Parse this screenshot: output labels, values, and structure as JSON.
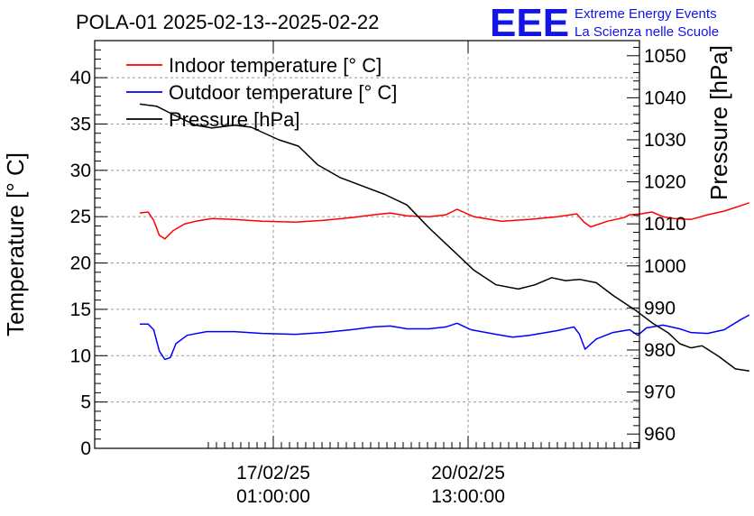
{
  "chart_data": {
    "type": "line",
    "title": "POLA-01 2025-02-13--2025-02-22",
    "logo": {
      "mark": "EEE",
      "line1": "Extreme Energy Events",
      "line2": "La Scienza nelle Scuole"
    },
    "ylabel_left": "Temperature [° C]",
    "ylabel_right": "Pressure [hPa]",
    "y_left_range": [
      0,
      44
    ],
    "y_left_ticks": [
      "0",
      "5",
      "10",
      "15",
      "20",
      "25",
      "30",
      "35",
      "40"
    ],
    "y_right_range": [
      956.6,
      1053.6
    ],
    "y_right_ticks": [
      "960",
      "970",
      "980",
      "990",
      "1000",
      "1010",
      "1020",
      "1030",
      "1040",
      "1050"
    ],
    "x_ticks": [
      {
        "date": "17/02/25",
        "time": "01:00:00"
      },
      {
        "date": "20/02/25",
        "time": "13:00:00"
      }
    ],
    "grid": true,
    "legend_position": "top-left",
    "series": [
      {
        "name": "Indoor temperature [° C]",
        "color": "#ff0000",
        "axis": "left",
        "points": [
          [
            0.0,
            25.4
          ],
          [
            0.15,
            25.5
          ],
          [
            0.25,
            24.6
          ],
          [
            0.35,
            23.0
          ],
          [
            0.45,
            22.6
          ],
          [
            0.6,
            23.5
          ],
          [
            0.8,
            24.2
          ],
          [
            1.0,
            24.5
          ],
          [
            1.3,
            24.8
          ],
          [
            1.7,
            24.7
          ],
          [
            2.2,
            24.5
          ],
          [
            2.8,
            24.4
          ],
          [
            3.3,
            24.6
          ],
          [
            3.8,
            24.9
          ],
          [
            4.2,
            25.2
          ],
          [
            4.5,
            25.4
          ],
          [
            4.8,
            25.1
          ],
          [
            5.2,
            25.0
          ],
          [
            5.5,
            25.2
          ],
          [
            5.7,
            25.8
          ],
          [
            6.0,
            25.0
          ],
          [
            6.5,
            24.5
          ],
          [
            7.0,
            24.7
          ],
          [
            7.5,
            25.0
          ],
          [
            7.85,
            25.3
          ],
          [
            7.98,
            24.4
          ],
          [
            8.1,
            23.9
          ],
          [
            8.4,
            24.5
          ],
          [
            8.7,
            24.9
          ],
          [
            8.8,
            25.2
          ],
          [
            9.0,
            25.3
          ],
          [
            9.2,
            25.5
          ],
          [
            9.4,
            25.0
          ],
          [
            9.6,
            24.8
          ],
          [
            9.9,
            24.7
          ],
          [
            10.2,
            25.2
          ],
          [
            10.5,
            25.6
          ],
          [
            10.8,
            26.2
          ],
          [
            10.95,
            26.5
          ]
        ]
      },
      {
        "name": "Outdoor temperature [° C]",
        "color": "#0000ff",
        "axis": "left",
        "points": [
          [
            0.0,
            13.4
          ],
          [
            0.15,
            13.4
          ],
          [
            0.25,
            12.8
          ],
          [
            0.35,
            10.5
          ],
          [
            0.45,
            9.6
          ],
          [
            0.55,
            9.8
          ],
          [
            0.65,
            11.3
          ],
          [
            0.85,
            12.2
          ],
          [
            1.2,
            12.6
          ],
          [
            1.7,
            12.6
          ],
          [
            2.2,
            12.4
          ],
          [
            2.8,
            12.3
          ],
          [
            3.3,
            12.5
          ],
          [
            3.8,
            12.8
          ],
          [
            4.2,
            13.1
          ],
          [
            4.5,
            13.2
          ],
          [
            4.8,
            12.9
          ],
          [
            5.2,
            12.9
          ],
          [
            5.5,
            13.1
          ],
          [
            5.7,
            13.5
          ],
          [
            5.95,
            12.8
          ],
          [
            6.4,
            12.3
          ],
          [
            6.7,
            12.0
          ],
          [
            7.0,
            12.2
          ],
          [
            7.5,
            12.7
          ],
          [
            7.8,
            13.1
          ],
          [
            7.9,
            12.3
          ],
          [
            8.0,
            10.7
          ],
          [
            8.2,
            11.8
          ],
          [
            8.5,
            12.5
          ],
          [
            8.8,
            12.8
          ],
          [
            8.95,
            12.2
          ],
          [
            9.1,
            13.0
          ],
          [
            9.4,
            13.3
          ],
          [
            9.7,
            12.9
          ],
          [
            9.9,
            12.5
          ],
          [
            10.2,
            12.4
          ],
          [
            10.5,
            12.8
          ],
          [
            10.8,
            13.9
          ],
          [
            10.95,
            14.4
          ]
        ]
      },
      {
        "name": "Pressure [hPa]",
        "color": "#000000",
        "axis": "right",
        "points": [
          [
            0.0,
            1038.5
          ],
          [
            0.3,
            1038.0
          ],
          [
            0.6,
            1036.0
          ],
          [
            1.0,
            1033.5
          ],
          [
            1.3,
            1032.8
          ],
          [
            1.7,
            1033.5
          ],
          [
            2.0,
            1033.0
          ],
          [
            2.5,
            1030.0
          ],
          [
            2.85,
            1028.5
          ],
          [
            3.2,
            1024.0
          ],
          [
            3.6,
            1021.0
          ],
          [
            4.0,
            1019.0
          ],
          [
            4.4,
            1017.0
          ],
          [
            4.8,
            1014.5
          ],
          [
            5.2,
            1009.0
          ],
          [
            5.6,
            1004.0
          ],
          [
            6.0,
            999.0
          ],
          [
            6.4,
            995.5
          ],
          [
            6.8,
            994.5
          ],
          [
            7.1,
            995.5
          ],
          [
            7.4,
            997.2
          ],
          [
            7.65,
            996.5
          ],
          [
            7.9,
            996.8
          ],
          [
            8.2,
            996.0
          ],
          [
            8.5,
            993.0
          ],
          [
            8.9,
            989.5
          ],
          [
            9.2,
            986.5
          ],
          [
            9.5,
            984.0
          ],
          [
            9.7,
            981.5
          ],
          [
            9.9,
            980.5
          ],
          [
            10.1,
            981.0
          ],
          [
            10.4,
            978.5
          ],
          [
            10.7,
            975.5
          ],
          [
            10.95,
            975.0
          ]
        ]
      }
    ]
  }
}
